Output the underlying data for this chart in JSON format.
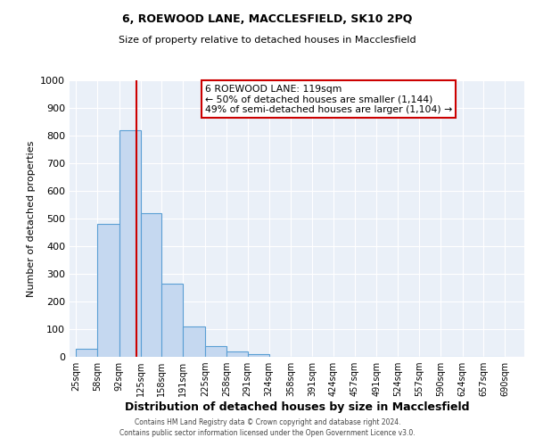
{
  "title": "6, ROEWOOD LANE, MACCLESFIELD, SK10 2PQ",
  "subtitle": "Size of property relative to detached houses in Macclesfield",
  "xlabel": "Distribution of detached houses by size in Macclesfield",
  "ylabel": "Number of detached properties",
  "bar_left_edges": [
    25,
    58,
    92,
    125,
    158,
    191,
    225,
    258,
    291,
    324,
    358,
    391,
    424,
    457,
    491,
    524,
    557,
    590,
    624,
    657
  ],
  "bar_widths": [
    33,
    34,
    33,
    33,
    33,
    34,
    33,
    33,
    33,
    34,
    33,
    33,
    33,
    34,
    33,
    33,
    33,
    34,
    33,
    33
  ],
  "bar_heights": [
    30,
    480,
    820,
    520,
    265,
    110,
    40,
    20,
    10,
    0,
    0,
    0,
    0,
    0,
    0,
    0,
    0,
    0,
    0,
    0
  ],
  "bar_color": "#c5d8f0",
  "bar_edge_color": "#5a9fd4",
  "vline_x": 119,
  "vline_color": "#cc0000",
  "annotation_line1": "6 ROEWOOD LANE: 119sqm",
  "annotation_line2": "← 50% of detached houses are smaller (1,144)",
  "annotation_line3": "49% of semi-detached houses are larger (1,104) →",
  "annotation_box_color": "#ffffff",
  "annotation_box_edge": "#cc0000",
  "tick_labels": [
    "25sqm",
    "58sqm",
    "92sqm",
    "125sqm",
    "158sqm",
    "191sqm",
    "225sqm",
    "258sqm",
    "291sqm",
    "324sqm",
    "358sqm",
    "391sqm",
    "424sqm",
    "457sqm",
    "491sqm",
    "524sqm",
    "557sqm",
    "590sqm",
    "624sqm",
    "657sqm",
    "690sqm"
  ],
  "tick_positions": [
    25,
    58,
    92,
    125,
    158,
    191,
    225,
    258,
    291,
    324,
    358,
    391,
    424,
    457,
    491,
    524,
    557,
    590,
    624,
    657,
    690
  ],
  "ylim": [
    0,
    1000
  ],
  "xlim": [
    15,
    720
  ],
  "yticks": [
    0,
    100,
    200,
    300,
    400,
    500,
    600,
    700,
    800,
    900,
    1000
  ],
  "background_color": "#eaf0f8",
  "footer_line1": "Contains HM Land Registry data © Crown copyright and database right 2024.",
  "footer_line2": "Contains public sector information licensed under the Open Government Licence v3.0."
}
